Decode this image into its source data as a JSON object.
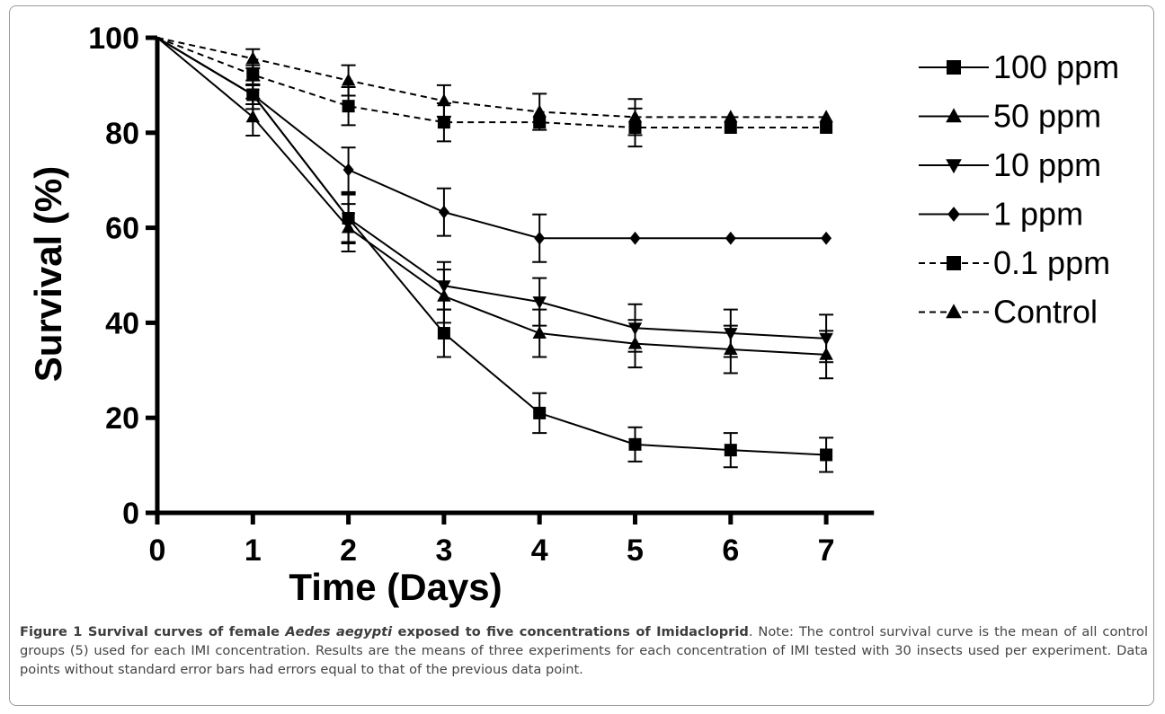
{
  "caption": {
    "lead_prefix": "Figure 1 Survival curves of female ",
    "lead_species": "Aedes aegypti",
    "lead_suffix": " exposed to five concentrations of Imidacloprid",
    "body": ". Note: The control survival curve is the mean of all control groups (5) used for each IMI concentration. Results are the means of three experiments for each concentration of IMI tested with 30 insects used per experiment. Data points without standard error bars had errors equal to that of the previous data point."
  },
  "chart_data": {
    "type": "line",
    "xlabel": "Time (Days)",
    "ylabel": "Survival (%)",
    "xlim": [
      0,
      7.5
    ],
    "ylim": [
      0,
      100
    ],
    "x_ticks": [
      "0",
      "1",
      "2",
      "3",
      "4",
      "5",
      "6",
      "7"
    ],
    "y_ticks": [
      "0",
      "20",
      "40",
      "60",
      "80",
      "100"
    ],
    "grid": false,
    "legend_position": "right",
    "x": [
      0,
      1,
      2,
      3,
      4,
      5,
      6,
      7
    ],
    "series": [
      {
        "name": "100 ppm",
        "marker": "square",
        "dash": false,
        "values": [
          100,
          88,
          62,
          37.8,
          21,
          14.4,
          13.2,
          12.2
        ],
        "errors": [
          0,
          2,
          5,
          5,
          4.2,
          3.6,
          3.6,
          3.6
        ]
      },
      {
        "name": "50 ppm",
        "marker": "triangle-up",
        "dash": false,
        "values": [
          100,
          83.3,
          60,
          45.6,
          37.8,
          35.6,
          34.4,
          33.3
        ],
        "errors": [
          0,
          3.9,
          5,
          5.6,
          5,
          5,
          5,
          5
        ]
      },
      {
        "name": "10 ppm",
        "marker": "triangle-down",
        "dash": false,
        "values": [
          100,
          88,
          62,
          47.8,
          44.4,
          38.9,
          37.8,
          36.7
        ],
        "errors": [
          0,
          3,
          5.3,
          5,
          5,
          5,
          5,
          5
        ]
      },
      {
        "name": "1 ppm",
        "marker": "diamond",
        "dash": false,
        "values": [
          100,
          88,
          72.2,
          63.3,
          57.8,
          57.8,
          57.8,
          57.8
        ],
        "errors": [
          0,
          2,
          4.7,
          5,
          5,
          0,
          0,
          0
        ]
      },
      {
        "name": "0.1 ppm",
        "marker": "square",
        "dash": true,
        "values": [
          100,
          92.2,
          85.6,
          82.2,
          82.2,
          81.1,
          81.1,
          81.1
        ],
        "errors": [
          0,
          2,
          4,
          4,
          0,
          4,
          0,
          0
        ]
      },
      {
        "name": "Control",
        "marker": "triangle-up",
        "dash": true,
        "values": [
          100,
          95.6,
          91,
          86.7,
          84.4,
          83.3,
          83.3,
          83.3
        ],
        "errors": [
          0,
          2,
          3.2,
          3.3,
          3.8,
          3.8,
          0,
          0
        ]
      }
    ]
  }
}
